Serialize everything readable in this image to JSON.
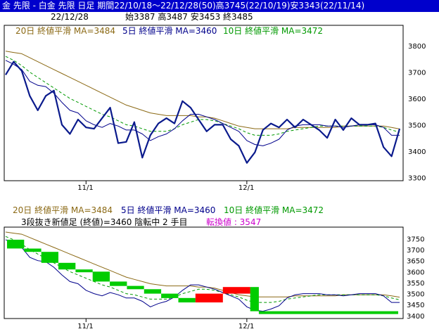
{
  "header": {
    "title": "金 先限 - 白金 先限 日足 期間22/10/18～22/12/28(50)高3745(22/10/19)安3343(22/11/14)",
    "date": "22/12/28",
    "ohlc": "始3387 高3487 安3453 終3485"
  },
  "colors": {
    "title_bg": "#0000cc",
    "ma20": "#8b6914",
    "ma5": "#00008b",
    "ma10": "#009900",
    "close": "#0a1a8c",
    "bull": "#ff0000",
    "bear": "#00cc00",
    "reversal": "#cc00cc"
  },
  "chart_data": [
    {
      "type": "line",
      "name": "price-chart",
      "legend": {
        "ma20": "20日 終値平滑 MA=3484",
        "ma5": "5日 終値平滑 MA=3460",
        "ma10": "10日 終値平滑 MA=3472"
      },
      "x_labels": [
        "11/1",
        "12/1"
      ],
      "x_label_index": [
        10,
        30
      ],
      "y_ticks": [
        3300,
        3400,
        3500,
        3600,
        3700,
        3800
      ],
      "ylim": [
        3290,
        3830
      ],
      "n": 50,
      "series": {
        "close": [
          3690,
          3740,
          3705,
          3610,
          3555,
          3610,
          3630,
          3500,
          3465,
          3520,
          3490,
          3485,
          3525,
          3565,
          3430,
          3435,
          3510,
          3375,
          3460,
          3505,
          3525,
          3505,
          3590,
          3565,
          3520,
          3475,
          3500,
          3500,
          3445,
          3420,
          3355,
          3395,
          3480,
          3505,
          3490,
          3520,
          3490,
          3520,
          3500,
          3480,
          3450,
          3520,
          3480,
          3525,
          3500,
          3500,
          3505,
          3415,
          3380,
          3485
        ],
        "ma5": [
          3745,
          3730,
          3710,
          3665,
          3650,
          3645,
          3620,
          3585,
          3555,
          3545,
          3515,
          3500,
          3490,
          3505,
          3495,
          3480,
          3480,
          3465,
          3440,
          3455,
          3465,
          3485,
          3515,
          3540,
          3540,
          3530,
          3520,
          3505,
          3490,
          3475,
          3440,
          3425,
          3420,
          3430,
          3445,
          3480,
          3495,
          3500,
          3500,
          3500,
          3495,
          3495,
          3490,
          3495,
          3500,
          3500,
          3500,
          3490,
          3460,
          3460
        ],
        "ma10": [
          3760,
          3745,
          3725,
          3700,
          3680,
          3660,
          3640,
          3620,
          3600,
          3585,
          3570,
          3555,
          3540,
          3530,
          3515,
          3500,
          3495,
          3485,
          3475,
          3475,
          3475,
          3485,
          3500,
          3510,
          3520,
          3520,
          3515,
          3505,
          3495,
          3485,
          3470,
          3460,
          3460,
          3460,
          3465,
          3475,
          3480,
          3485,
          3490,
          3495,
          3495,
          3495,
          3495,
          3495,
          3495,
          3495,
          3495,
          3490,
          3480,
          3472
        ],
        "ma20": [
          3780,
          3775,
          3770,
          3755,
          3740,
          3725,
          3710,
          3695,
          3680,
          3665,
          3650,
          3635,
          3620,
          3605,
          3590,
          3575,
          3565,
          3555,
          3545,
          3540,
          3535,
          3535,
          3535,
          3535,
          3530,
          3530,
          3525,
          3515,
          3505,
          3495,
          3490,
          3485,
          3485,
          3485,
          3485,
          3485,
          3490,
          3490,
          3490,
          3490,
          3490,
          3490,
          3495,
          3495,
          3495,
          3495,
          3495,
          3495,
          3490,
          3484
        ]
      }
    },
    {
      "type": "line",
      "name": "three-line-break-chart",
      "legend": {
        "ma20": "20日 終値平滑 MA=3484",
        "ma5": "5日 終値平滑 MA=3460",
        "ma10": "10日 終値平滑 MA=3472"
      },
      "status": "3段抜き新値足 (終値)=3460 陰転中 2 手目",
      "reversal": "転換値 : 3547",
      "x_labels": [
        "11/1",
        "12/1"
      ],
      "y_ticks": [
        3400,
        3450,
        3500,
        3550,
        3600,
        3650,
        3700,
        3750
      ],
      "ylim": [
        3390,
        3780
      ],
      "blocks": [
        {
          "from": 3745,
          "to": 3705,
          "dir": "down"
        },
        {
          "from": 3705,
          "to": 3690,
          "dir": "down"
        },
        {
          "from": 3690,
          "to": 3640,
          "dir": "down"
        },
        {
          "from": 3640,
          "to": 3610,
          "dir": "down"
        },
        {
          "from": 3610,
          "to": 3600,
          "dir": "down"
        },
        {
          "from": 3600,
          "to": 3555,
          "dir": "down"
        },
        {
          "from": 3555,
          "to": 3535,
          "dir": "down"
        },
        {
          "from": 3535,
          "to": 3520,
          "dir": "down"
        },
        {
          "from": 3520,
          "to": 3500,
          "dir": "down"
        },
        {
          "from": 3500,
          "to": 3480,
          "dir": "down"
        },
        {
          "from": 3480,
          "to": 3460,
          "dir": "down"
        },
        {
          "from": 3460,
          "to": 3500,
          "dir": "up"
        },
        {
          "from": 3500,
          "to": 3530,
          "dir": "up"
        },
        {
          "from": 3530,
          "to": 3420,
          "dir": "down"
        },
        {
          "from": 3420,
          "to": 3410,
          "dir": "down"
        }
      ]
    }
  ]
}
